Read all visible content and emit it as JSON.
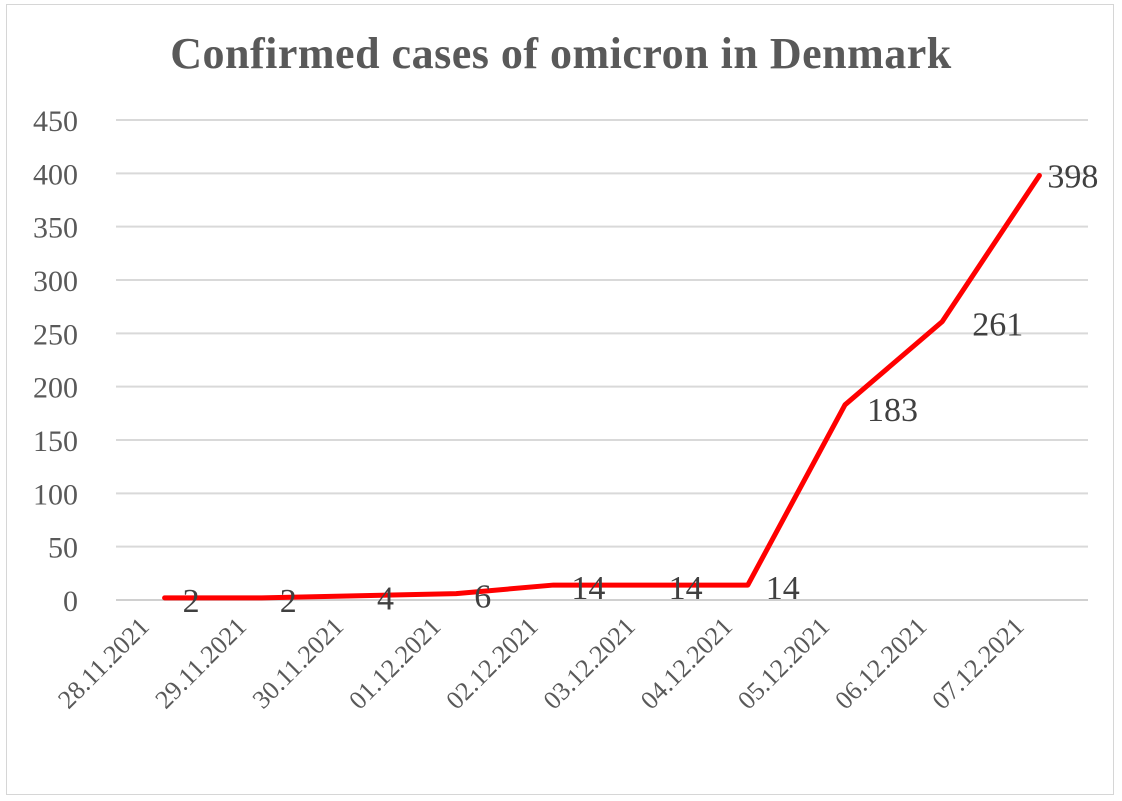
{
  "chart_data": {
    "type": "line",
    "title": "Confirmed cases of  omicron in Denmark",
    "xlabel": "",
    "ylabel": "",
    "categories": [
      "28.11.2021",
      "29.11.2021",
      "30.11.2021",
      "01.12.2021",
      "02.12.2021",
      "03.12.2021",
      "04.12.2021",
      "05.12.2021",
      "06.12.2021",
      "07.12.2021"
    ],
    "series": [
      {
        "values": [
          2,
          2,
          4,
          6,
          14,
          14,
          14,
          183,
          261,
          398
        ],
        "data_labels": [
          "2",
          "2",
          "4",
          "6",
          "14",
          "14",
          "14",
          "183",
          "261",
          "398"
        ],
        "color": "#ff0000"
      }
    ],
    "ylim": [
      0,
      450
    ],
    "yticks": [
      "0",
      "50",
      "100",
      "150",
      "200",
      "250",
      "300",
      "350",
      "400",
      "450"
    ],
    "grid": true,
    "legend": "none"
  }
}
